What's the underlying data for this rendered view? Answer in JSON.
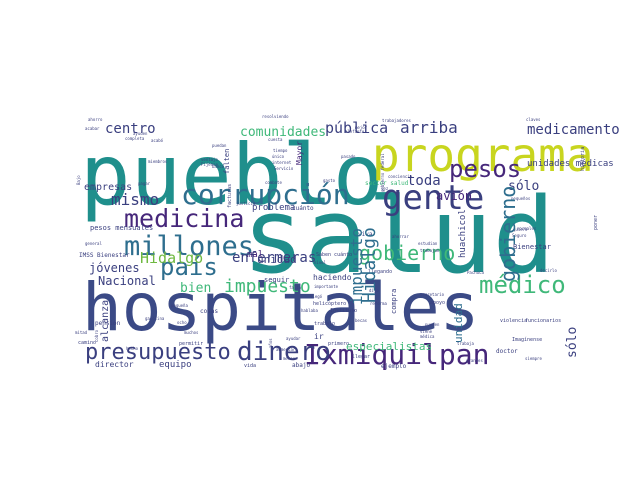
{
  "palette": {
    "background": "#ffffff",
    "navy": "#3b4a86",
    "dark_navy": "#3a3f7f",
    "teal": "#1f8f8c",
    "blue": "#2e6e8e",
    "purple": "#46277a",
    "lime": "#c8d51f",
    "green": "#3fb879",
    "light_green": "#8fd14f",
    "olive": "#6fb941"
  },
  "words": [
    {
      "text": "salud",
      "weight": 100
    },
    {
      "text": "hospitales",
      "weight": 90
    },
    {
      "text": "pueblo",
      "weight": 88
    },
    {
      "text": "programa",
      "weight": 60
    },
    {
      "text": "millones",
      "weight": 36
    },
    {
      "text": "corrupción",
      "weight": 34
    },
    {
      "text": "medicina",
      "weight": 30
    },
    {
      "text": "gente",
      "weight": 34
    },
    {
      "text": "Ixmiquilpan",
      "weight": 36
    },
    {
      "text": "dinero",
      "weight": 32
    },
    {
      "text": "presupuesto",
      "weight": 26
    },
    {
      "text": "país",
      "weight": 28
    },
    {
      "text": "pesos",
      "weight": 26
    },
    {
      "text": "médico",
      "weight": 24
    },
    {
      "text": "gobierno",
      "weight": 24
    },
    {
      "text": "Hidalgo",
      "weight": 22
    },
    {
      "text": "impuesto",
      "weight": 20
    },
    {
      "text": "arriba",
      "weight": 20
    },
    {
      "text": "centro",
      "weight": 18
    },
    {
      "text": "pública",
      "weight": 18
    },
    {
      "text": "comunidades",
      "weight": 17
    },
    {
      "text": "medicamento",
      "weight": 16
    },
    {
      "text": "toda",
      "weight": 16
    },
    {
      "text": "mismo",
      "weight": 15
    },
    {
      "text": "avión",
      "weight": 15
    },
    {
      "text": "sólo",
      "weight": 15
    },
    {
      "text": "bien",
      "weight": 16
    },
    {
      "text": "jóvenes",
      "weight": 13
    },
    {
      "text": "Nacional",
      "weight": 14
    },
    {
      "text": "enfermeras",
      "weight": 13
    },
    {
      "text": "unidad",
      "weight": 14
    },
    {
      "text": "empresas",
      "weight": 13
    },
    {
      "text": "problema",
      "weight": 12
    },
    {
      "text": "mal",
      "weight": 13
    },
    {
      "text": "equipo",
      "weight": 12
    },
    {
      "text": "director",
      "weight": 12
    },
    {
      "text": "especialistas",
      "weight": 11
    },
    {
      "text": "haciendo",
      "weight": 10
    },
    {
      "text": "huachicol",
      "weight": 10
    },
    {
      "text": "unidades médicas",
      "weight": 9
    },
    {
      "text": "Bienestar",
      "weight": 9
    },
    {
      "text": "ir",
      "weight": 10
    },
    {
      "text": "seguir",
      "weight": 9
    },
    {
      "text": "ejemplo",
      "weight": 9
    },
    {
      "text": "abajo",
      "weight": 9
    },
    {
      "text": "doctor",
      "weight": 8
    },
    {
      "text": "viva",
      "weight": 8
    },
    {
      "text": "cosas",
      "weight": 8
    },
    {
      "text": "pesos mensuales",
      "weight": 7
    },
    {
      "text": "IMSS Bienestar",
      "weight": 7
    },
    {
      "text": "sector salud",
      "weight": 7
    },
    {
      "text": "alcanza",
      "weight": 7
    },
    {
      "text": "pensión",
      "weight": 7
    },
    {
      "text": "apoyo",
      "weight": 7
    },
    {
      "text": "ahorro",
      "weight": 7
    },
    {
      "text": "cuánto",
      "weight": 7
    },
    {
      "text": "falten",
      "weight": 8
    },
    {
      "text": "Mayor",
      "weight": 6
    },
    {
      "text": "llegar",
      "weight": 6
    },
    {
      "text": "compra",
      "weight": 5
    },
    {
      "text": "vida",
      "weight": 6
    },
    {
      "text": "permitir",
      "weight": 6
    },
    {
      "text": "primero",
      "weight": 6
    },
    {
      "text": "trabajo",
      "weight": 6
    },
    {
      "text": "Instituto",
      "weight": 6
    },
    {
      "text": "helicóptero",
      "weight": 6
    },
    {
      "text": "violencia",
      "weight": 5
    },
    {
      "text": "funcionarios",
      "weight": 5
    },
    {
      "text": "camino",
      "weight": 5
    },
    {
      "text": "Imagínense",
      "weight": 5
    },
    {
      "text": "grandes",
      "weight": 5
    },
    {
      "text": "siempre",
      "weight": 5
    },
    {
      "text": "historia",
      "weight": 5
    },
    {
      "text": "llegando",
      "weight": 5
    },
    {
      "text": "Saben cuánto",
      "weight": 5
    },
    {
      "text": "ahorrar",
      "weight": 5
    },
    {
      "text": "estudian",
      "weight": 5
    },
    {
      "text": "trabajan",
      "weight": 5
    },
    {
      "text": "normales",
      "weight": 5
    },
    {
      "text": "Seguro",
      "weight": 5
    },
    {
      "text": "quiero",
      "weight": 5
    },
    {
      "text": "pequeños",
      "weight": 5
    },
    {
      "text": "combate",
      "weight": 5
    },
    {
      "text": "gasto",
      "weight": 5
    },
    {
      "text": "elefante",
      "weight": 5
    },
    {
      "text": "pasado",
      "weight": 5
    },
    {
      "text": "mejor",
      "weight": 5
    },
    {
      "text": "trabajadores",
      "weight": 5
    },
    {
      "text": "resolviendo",
      "weight": 5
    },
    {
      "text": "tiempo",
      "weight": 5
    },
    {
      "text": "único",
      "weight": 5
    },
    {
      "text": "internet",
      "weight": 5
    },
    {
      "text": "Servicio",
      "weight": 5
    },
    {
      "text": "cuesta",
      "weight": 5
    },
    {
      "text": "claves",
      "weight": 5
    },
    {
      "text": "ventajo",
      "weight": 5
    },
    {
      "text": "ayuden",
      "weight": 5
    },
    {
      "text": "acabar",
      "weight": 5
    },
    {
      "text": "justicia",
      "weight": 5
    },
    {
      "text": "pagar",
      "weight": 5
    },
    {
      "text": "banco",
      "weight": 5
    },
    {
      "text": "facturas",
      "weight": 5
    },
    {
      "text": "pequeña",
      "weight": 5
    },
    {
      "text": "general",
      "weight": 5
    },
    {
      "text": "nivel",
      "weight": 5
    },
    {
      "text": "ocho",
      "weight": 5
    },
    {
      "text": "hecho",
      "weight": 5
    },
    {
      "text": "gasolina",
      "weight": 5
    },
    {
      "text": "muchos",
      "weight": 5
    },
    {
      "text": "años",
      "weight": 5
    },
    {
      "text": "importante",
      "weight": 5
    },
    {
      "text": "llegó",
      "weight": 5
    },
    {
      "text": "dijo",
      "weight": 5
    },
    {
      "text": "secretario",
      "weight": 5
    },
    {
      "text": "trabaja",
      "weight": 5
    },
    {
      "text": "médica",
      "weight": 5
    },
    {
      "text": "pueden",
      "weight": 5
    },
    {
      "text": "Pachuca",
      "weight": 5
    },
    {
      "text": "decirlo",
      "weight": 5
    },
    {
      "text": "aumentar",
      "weight": 5
    },
    {
      "text": "menos",
      "weight": 5
    },
    {
      "text": "reforma",
      "weight": 5
    },
    {
      "text": "honesto",
      "weight": 5
    },
    {
      "text": "poner",
      "weight": 5
    },
    {
      "text": "mejorar",
      "weight": 5
    },
    {
      "text": "cargo",
      "weight": 5
    },
    {
      "text": "práctica",
      "weight": 5
    },
    {
      "text": "hidalguense",
      "weight": 5
    },
    {
      "text": "gobierno federal",
      "weight": 5
    },
    {
      "text": "Bajo",
      "weight": 5
    },
    {
      "text": "sabías",
      "weight": 5
    },
    {
      "text": "mitad",
      "weight": 5
    },
    {
      "text": "médicos mayores",
      "weight": 5
    },
    {
      "text": "becas",
      "weight": 5
    },
    {
      "text": "pobres",
      "weight": 5
    },
    {
      "text": "Requisitos",
      "weight": 5
    },
    {
      "text": "cobertura",
      "weight": 5
    },
    {
      "text": "ayudar",
      "weight": 5
    },
    {
      "text": "acabó",
      "weight": 5
    },
    {
      "text": "completa",
      "weight": 5
    },
    {
      "text": "miembros",
      "weight": 5
    },
    {
      "text": "dirigentes",
      "weight": 5
    },
    {
      "text": "seis",
      "weight": 5
    },
    {
      "text": "viene",
      "weight": 5
    },
    {
      "text": "cobro",
      "weight": 5
    },
    {
      "text": "verdad",
      "weight": 5
    },
    {
      "text": "democracia",
      "weight": 5
    },
    {
      "text": "hablaba",
      "weight": 5
    },
    {
      "text": "bajo",
      "weight": 5
    },
    {
      "text": "puedan",
      "weight": 5
    },
    {
      "text": "Fijense",
      "weight": 5
    },
    {
      "text": "conciencia",
      "weight": 5
    },
    {
      "text": "nuevo",
      "weight": 5
    },
    {
      "text": "público",
      "weight": 5
    },
    {
      "text": "terminal",
      "weight": 5
    },
    {
      "text": "falta",
      "weight": 5
    },
    {
      "text": "dinero público",
      "weight": 5
    },
    {
      "text": "zona",
      "weight": 5
    },
    {
      "text": "cinco",
      "weight": 5
    },
    {
      "text": "salir",
      "weight": 5
    },
    {
      "text": "vez",
      "weight": 5
    },
    {
      "text": "doctores",
      "weight": 5
    },
    {
      "text": "fortalecer",
      "weight": 5
    },
    {
      "text": "podemos",
      "weight": 5
    },
    {
      "text": "derechohabientes",
      "weight": 5
    },
    {
      "text": "mayores",
      "weight": 5
    },
    {
      "text": "hicieron",
      "weight": 5
    },
    {
      "text": "tenemos",
      "weight": 5
    },
    {
      "text": "ibas",
      "weight": 5
    }
  ]
}
